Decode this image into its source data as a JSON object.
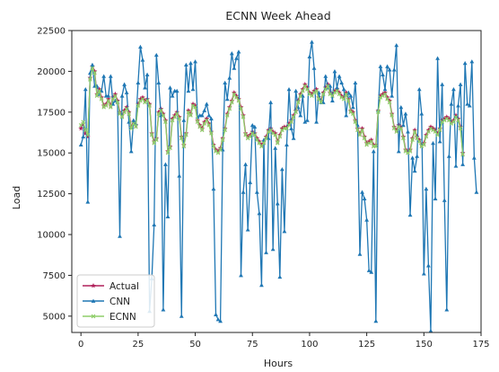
{
  "chart_data": {
    "type": "line",
    "title": "ECNN Week Ahead",
    "xlabel": "Hours",
    "ylabel": "Load",
    "xlim": [
      -4,
      175
    ],
    "ylim": [
      4000,
      22500
    ],
    "xticks": [
      0,
      25,
      50,
      75,
      100,
      125,
      150,
      175
    ],
    "yticks": [
      5000,
      7500,
      10000,
      12500,
      15000,
      17500,
      20000,
      22500
    ],
    "grid": false,
    "legend_position": "lower-left",
    "series": [
      {
        "name": "Actual",
        "color": "#b0205a",
        "marker": "star",
        "values": [
          16500,
          16800,
          16200,
          16000,
          19600,
          20300,
          20000,
          18600,
          18900,
          18400,
          17900,
          18000,
          18300,
          17900,
          18400,
          18600,
          18200,
          17500,
          17300,
          17600,
          17800,
          17500,
          16600,
          16900,
          16700,
          18000,
          18300,
          18400,
          18200,
          18300,
          18000,
          16200,
          15700,
          15900,
          17500,
          17700,
          17400,
          17000,
          15100,
          15400,
          17100,
          17300,
          17500,
          17200,
          16000,
          15500,
          16200,
          17600,
          17400,
          18000,
          17900,
          17000,
          16700,
          16500,
          16900,
          17100,
          16800,
          16300,
          15500,
          15200,
          15100,
          15300,
          15900,
          16500,
          17400,
          17800,
          18200,
          18700,
          18500,
          18300,
          17800,
          17300,
          16200,
          16000,
          16100,
          16300,
          16200,
          15900,
          15700,
          15500,
          15700,
          16000,
          16400,
          16500,
          16300,
          16200,
          15700,
          16100,
          16500,
          16600,
          16600,
          16800,
          17000,
          17300,
          17600,
          18200,
          18600,
          18900,
          19200,
          19000,
          18700,
          18600,
          18800,
          18900,
          18400,
          18200,
          18700,
          19000,
          19200,
          18700,
          18600,
          18800,
          18900,
          18700,
          18500,
          18400,
          18700,
          18300,
          17600,
          17500,
          17000,
          16500,
          16200,
          16500,
          16000,
          15600,
          15700,
          15800,
          15500,
          15500,
          17600,
          18500,
          18600,
          18700,
          18400,
          18200,
          17400,
          16600,
          16400,
          16700,
          16600,
          16000,
          15200,
          15100,
          15200,
          15900,
          16400,
          16000,
          15800,
          15500,
          15600,
          16100,
          16400,
          16600,
          16500,
          16400,
          16200,
          16500,
          17000,
          17100,
          17200,
          17100,
          16900,
          17000,
          17300,
          17100,
          16600,
          15000
        ]
      },
      {
        "name": "CNN",
        "color": "#1f77b4",
        "marker": "triangle",
        "values": [
          15500,
          16000,
          18900,
          12000,
          19900,
          20400,
          19100,
          19100,
          18600,
          18800,
          19700,
          18500,
          18500,
          19700,
          18000,
          18200,
          18100,
          9900,
          18500,
          19200,
          18700,
          16900,
          15100,
          17000,
          16800,
          19300,
          21500,
          20700,
          19000,
          19800,
          5300,
          7300,
          10600,
          21000,
          19300,
          17300,
          5400,
          14300,
          11100,
          19000,
          18500,
          18800,
          18800,
          13600,
          5000,
          17000,
          20400,
          18800,
          20500,
          18900,
          20600,
          17200,
          17300,
          17300,
          17600,
          18000,
          17300,
          17100,
          12800,
          5100,
          4800,
          4700,
          15200,
          19300,
          18300,
          19600,
          21100,
          20200,
          20800,
          21200,
          7500,
          12600,
          14300,
          10300,
          13200,
          16700,
          16600,
          12600,
          11300,
          6900,
          15800,
          8900,
          15900,
          18100,
          9100,
          15300,
          11900,
          7400,
          14000,
          10200,
          15500,
          18900,
          16500,
          15900,
          18800,
          17800,
          17300,
          18500,
          16900,
          17000,
          20900,
          21800,
          20200,
          16900,
          18700,
          18100,
          18100,
          19700,
          19000,
          19100,
          18200,
          20000,
          19000,
          19700,
          19300,
          18900,
          17300,
          18700,
          18500,
          17800,
          19300,
          16700,
          8800,
          12600,
          12200,
          10900,
          7800,
          7700,
          15100,
          4700,
          17600,
          20300,
          19800,
          18900,
          20300,
          20100,
          18500,
          20100,
          21600,
          15100,
          17800,
          16700,
          17400,
          16300,
          11200,
          14700,
          13900,
          14800,
          18900,
          17400,
          7600,
          12800,
          8100,
          4100,
          15600,
          12200,
          20800,
          15700,
          19200,
          12100,
          5400,
          14800,
          18000,
          18900,
          14200,
          17900,
          19200,
          14300,
          20500,
          18000,
          17900,
          20600,
          14700,
          12600
        ]
      },
      {
        "name": "ECNN",
        "color": "#8fce6a",
        "marker": "x",
        "values": [
          16700,
          16900,
          16400,
          16100,
          19500,
          20200,
          19900,
          18500,
          18800,
          18300,
          17800,
          17900,
          18200,
          17800,
          18300,
          18500,
          18100,
          17400,
          17200,
          17500,
          17700,
          17400,
          16500,
          16800,
          16600,
          17900,
          18200,
          18300,
          18100,
          18200,
          17900,
          16100,
          15600,
          15800,
          17400,
          17600,
          17300,
          16900,
          15000,
          15300,
          17000,
          17200,
          17400,
          17100,
          15900,
          15400,
          16100,
          17500,
          17300,
          17900,
          17800,
          16900,
          16600,
          16400,
          16800,
          17000,
          16700,
          16200,
          15400,
          15100,
          15000,
          15200,
          15800,
          16400,
          17300,
          17700,
          18100,
          18600,
          18400,
          18200,
          17700,
          17200,
          16100,
          15900,
          16000,
          16200,
          16100,
          15800,
          15600,
          15400,
          15600,
          15900,
          16300,
          16400,
          16200,
          16100,
          15600,
          16000,
          16400,
          16500,
          16500,
          16700,
          16900,
          17200,
          17500,
          18100,
          18500,
          18800,
          19100,
          18900,
          18600,
          18500,
          18700,
          18800,
          18300,
          18100,
          18600,
          18900,
          19100,
          18600,
          18500,
          18700,
          18800,
          18600,
          18400,
          18300,
          18600,
          18200,
          17500,
          17400,
          16900,
          16400,
          16100,
          16400,
          15900,
          15500,
          15600,
          15700,
          15400,
          15400,
          17500,
          18400,
          18500,
          18600,
          18300,
          18100,
          17300,
          16500,
          16300,
          16600,
          16500,
          15900,
          15100,
          15000,
          15100,
          15800,
          16300,
          15900,
          15700,
          15400,
          15500,
          16000,
          16300,
          16500,
          16400,
          16300,
          16100,
          16400,
          16900,
          17000,
          17100,
          17000,
          16800,
          16900,
          17200,
          17000,
          16500,
          14900
        ]
      }
    ]
  }
}
